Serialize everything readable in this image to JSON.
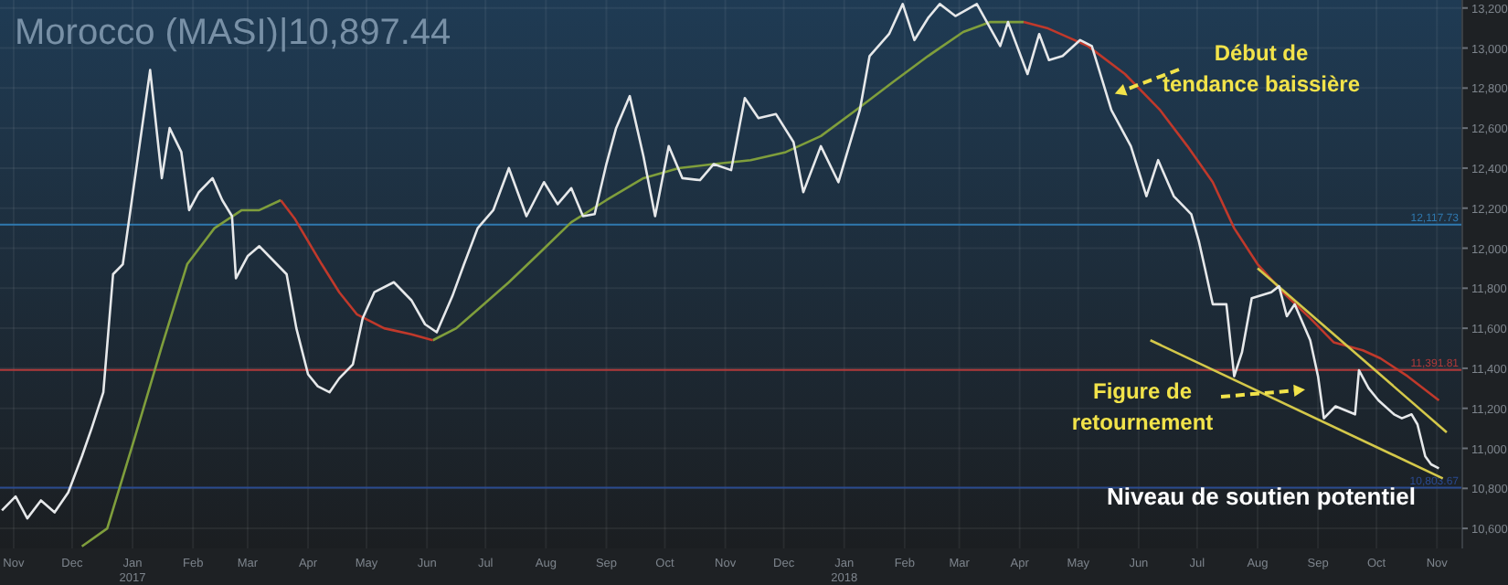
{
  "chart_data": {
    "type": "line",
    "title": "Morocco (MASI)|10,897.44",
    "xlim": [
      "2016-10-25",
      "2018-11-14"
    ],
    "xticks": [
      {
        "value": "2016-11-01",
        "label": "Nov"
      },
      {
        "value": "2016-12-01",
        "label": "Dec"
      },
      {
        "value": "2017-01-01",
        "label": "Jan\n2017"
      },
      {
        "value": "2017-02-01",
        "label": "Feb"
      },
      {
        "value": "2017-03-01",
        "label": "Mar"
      },
      {
        "value": "2017-04-01",
        "label": "Apr"
      },
      {
        "value": "2017-05-01",
        "label": "May"
      },
      {
        "value": "2017-06-01",
        "label": "Jun"
      },
      {
        "value": "2017-07-01",
        "label": "Jul"
      },
      {
        "value": "2017-08-01",
        "label": "Aug"
      },
      {
        "value": "2017-09-01",
        "label": "Sep"
      },
      {
        "value": "2017-10-01",
        "label": "Oct"
      },
      {
        "value": "2017-11-01",
        "label": "Nov"
      },
      {
        "value": "2017-12-01",
        "label": "Dec"
      },
      {
        "value": "2018-01-01",
        "label": "Jan\n2018"
      },
      {
        "value": "2018-02-01",
        "label": "Feb"
      },
      {
        "value": "2018-03-01",
        "label": "Mar"
      },
      {
        "value": "2018-04-01",
        "label": "Apr"
      },
      {
        "value": "2018-05-01",
        "label": "May"
      },
      {
        "value": "2018-06-01",
        "label": "Jun"
      },
      {
        "value": "2018-07-01",
        "label": "Jul"
      },
      {
        "value": "2018-08-01",
        "label": "Aug"
      },
      {
        "value": "2018-09-01",
        "label": "Sep"
      },
      {
        "value": "2018-10-01",
        "label": "Oct"
      },
      {
        "value": "2018-11-01",
        "label": "Nov"
      }
    ],
    "ylim": [
      10500,
      13240
    ],
    "yticks": [
      {
        "value": 10600,
        "label": "10,600"
      },
      {
        "value": 10800,
        "label": "10,800"
      },
      {
        "value": 11000,
        "label": "11,000"
      },
      {
        "value": 11200,
        "label": "11,200"
      },
      {
        "value": 11400,
        "label": "11,400"
      },
      {
        "value": 11600,
        "label": "11,600"
      },
      {
        "value": 11800,
        "label": "11,800"
      },
      {
        "value": 12000,
        "label": "12,000"
      },
      {
        "value": 12200,
        "label": "12,200"
      },
      {
        "value": 12400,
        "label": "12,400"
      },
      {
        "value": 12600,
        "label": "12,600"
      },
      {
        "value": 12800,
        "label": "12,800"
      },
      {
        "value": 13000,
        "label": "13,000"
      },
      {
        "value": 13200,
        "label": "13,200"
      }
    ],
    "grid": true,
    "marker": "none",
    "line_style": "solid",
    "ref_lines": [
      {
        "axis": "y",
        "value": 12117.73,
        "label": "12,117.73",
        "color": "#2f79b0"
      },
      {
        "axis": "y",
        "value": 11391.81,
        "label": "11,391.81",
        "color": "#b03a3a"
      },
      {
        "axis": "y",
        "value": 10803.67,
        "label": "10,803.67",
        "color": "#2a4a90"
      }
    ],
    "series": [
      {
        "color": "#7f9e3c",
        "x": [
          "2016-12-06",
          "2016-12-19",
          "2017-01-02",
          "2017-01-16",
          "2017-01-29",
          "2017-02-12",
          "2017-02-26",
          "2017-03-07",
          "2017-03-18",
          "2017-05-01",
          "2017-06-04",
          "2017-06-16",
          "2017-06-29",
          "2017-07-13",
          "2017-07-27",
          "2017-08-14",
          "2017-09-01",
          "2017-09-20",
          "2017-10-08",
          "2017-10-26",
          "2017-11-14",
          "2017-12-02",
          "2017-12-20",
          "2018-01-07",
          "2018-01-26",
          "2018-02-13",
          "2018-03-03",
          "2018-03-17",
          "2018-04-03"
        ],
        "values": [
          10510,
          10600,
          11050,
          11510,
          11920,
          12100,
          12190,
          12190,
          12240,
          null,
          11540,
          11600,
          11710,
          11830,
          11960,
          12130,
          12240,
          12350,
          12400,
          12420,
          12440,
          12480,
          12560,
          12690,
          12830,
          12960,
          13080,
          13130,
          13130
        ]
      },
      {
        "color": "#c0392b",
        "x": [
          "2017-03-18",
          "2017-03-25",
          "2017-04-08",
          "2017-04-17",
          "2017-04-26",
          "2017-05-10",
          "2017-05-24",
          "2017-06-04",
          "2017-10-01",
          "2018-04-03",
          "2018-04-15",
          "2018-05-06",
          "2018-05-25",
          "2018-06-12",
          "2018-06-26",
          "2018-07-09",
          "2018-07-20",
          "2018-08-01",
          "2018-08-14",
          "2018-08-28",
          "2018-09-09",
          "2018-09-24",
          "2018-10-03",
          "2018-10-17",
          "2018-11-02"
        ],
        "values": [
          12240,
          12150,
          11920,
          11780,
          11670,
          11600,
          11570,
          11540,
          null,
          13130,
          13100,
          13010,
          12870,
          12690,
          12510,
          12330,
          12100,
          11920,
          11780,
          11650,
          11530,
          11490,
          11450,
          11360,
          11240
        ]
      },
      {
        "color": "#d4c84a",
        "x": [
          "2018-08-01",
          "2018-11-06"
        ],
        "values": [
          11900,
          11080
        ]
      },
      {
        "color": "#d4c84a",
        "x": [
          "2018-06-07",
          "2018-11-04"
        ],
        "values": [
          11540,
          10850
        ]
      },
      {
        "color": "#e6e8ea",
        "x": [
          "2016-10-26",
          "2016-11-02",
          "2016-11-08",
          "2016-11-15",
          "2016-11-22",
          "2016-11-29",
          "2016-12-06",
          "2016-12-11",
          "2016-12-17",
          "2016-12-22",
          "2016-12-27",
          "2017-01-10",
          "2017-01-16",
          "2017-01-20",
          "2017-01-26",
          "2017-01-30",
          "2017-02-04",
          "2017-02-11",
          "2017-02-16",
          "2017-02-21",
          "2017-02-23",
          "2017-03-01",
          "2017-03-07",
          "2017-03-13",
          "2017-03-21",
          "2017-03-26",
          "2017-04-01",
          "2017-04-06",
          "2017-04-12",
          "2017-04-17",
          "2017-04-24",
          "2017-04-29",
          "2017-05-05",
          "2017-05-15",
          "2017-05-24",
          "2017-05-31",
          "2017-06-06",
          "2017-06-14",
          "2017-06-20",
          "2017-06-27",
          "2017-07-05",
          "2017-07-13",
          "2017-07-22",
          "2017-07-31",
          "2017-08-07",
          "2017-08-14",
          "2017-08-20",
          "2017-08-26",
          "2017-09-01",
          "2017-09-06",
          "2017-09-13",
          "2017-09-20",
          "2017-09-26",
          "2017-10-03",
          "2017-10-10",
          "2017-10-19",
          "2017-10-26",
          "2017-11-04",
          "2017-11-11",
          "2017-11-18",
          "2017-11-27",
          "2017-12-06",
          "2017-12-11",
          "2017-12-20",
          "2017-12-29",
          "2018-01-09",
          "2018-01-14",
          "2018-01-24",
          "2018-01-31",
          "2018-02-06",
          "2018-02-13",
          "2018-02-19",
          "2018-02-27",
          "2018-03-10",
          "2018-03-22",
          "2018-03-26",
          "2018-04-05",
          "2018-04-11",
          "2018-04-16",
          "2018-04-23",
          "2018-05-02",
          "2018-05-08",
          "2018-05-18",
          "2018-05-28",
          "2018-06-05",
          "2018-06-11",
          "2018-06-19",
          "2018-06-28",
          "2018-07-02",
          "2018-07-05",
          "2018-07-09",
          "2018-07-16",
          "2018-07-20",
          "2018-07-24",
          "2018-07-29",
          "2018-08-08",
          "2018-08-12",
          "2018-08-16",
          "2018-08-20",
          "2018-08-28",
          "2018-09-01",
          "2018-09-04",
          "2018-09-10",
          "2018-09-20",
          "2018-09-22",
          "2018-09-27",
          "2018-10-02",
          "2018-10-10",
          "2018-10-14",
          "2018-10-19",
          "2018-10-22",
          "2018-10-26",
          "2018-10-29",
          "2018-11-02"
        ],
        "values": [
          10690,
          10760,
          10650,
          10740,
          10680,
          10780,
          10960,
          11100,
          11280,
          11870,
          11920,
          12890,
          12350,
          12600,
          12480,
          12190,
          12280,
          12350,
          12240,
          12160,
          11850,
          11960,
          12010,
          11950,
          11870,
          11600,
          11370,
          11310,
          11280,
          11350,
          11420,
          11650,
          11780,
          11830,
          11740,
          11620,
          11580,
          11760,
          11920,
          12100,
          12190,
          12400,
          12160,
          12330,
          12220,
          12300,
          12160,
          12170,
          12420,
          12600,
          12760,
          12460,
          12160,
          12510,
          12350,
          12340,
          12420,
          12390,
          12750,
          12650,
          12670,
          12530,
          12280,
          12510,
          12330,
          12690,
          12960,
          13070,
          13220,
          13040,
          13150,
          13220,
          13160,
          13220,
          13010,
          13130,
          12870,
          13070,
          12940,
          12960,
          13040,
          13010,
          12690,
          12510,
          12260,
          12440,
          12260,
          12170,
          12030,
          11900,
          11720,
          11720,
          11360,
          11480,
          11750,
          11780,
          11810,
          11660,
          11720,
          11540,
          11360,
          11150,
          11210,
          11170,
          11390,
          11300,
          11240,
          11170,
          11150,
          11170,
          11120,
          10960,
          10920,
          10900
        ]
      }
    ],
    "annotations": [
      "Début de\ntendance baissière",
      "Figure de\nretournement",
      "Niveau de soutien potentiel"
    ]
  }
}
